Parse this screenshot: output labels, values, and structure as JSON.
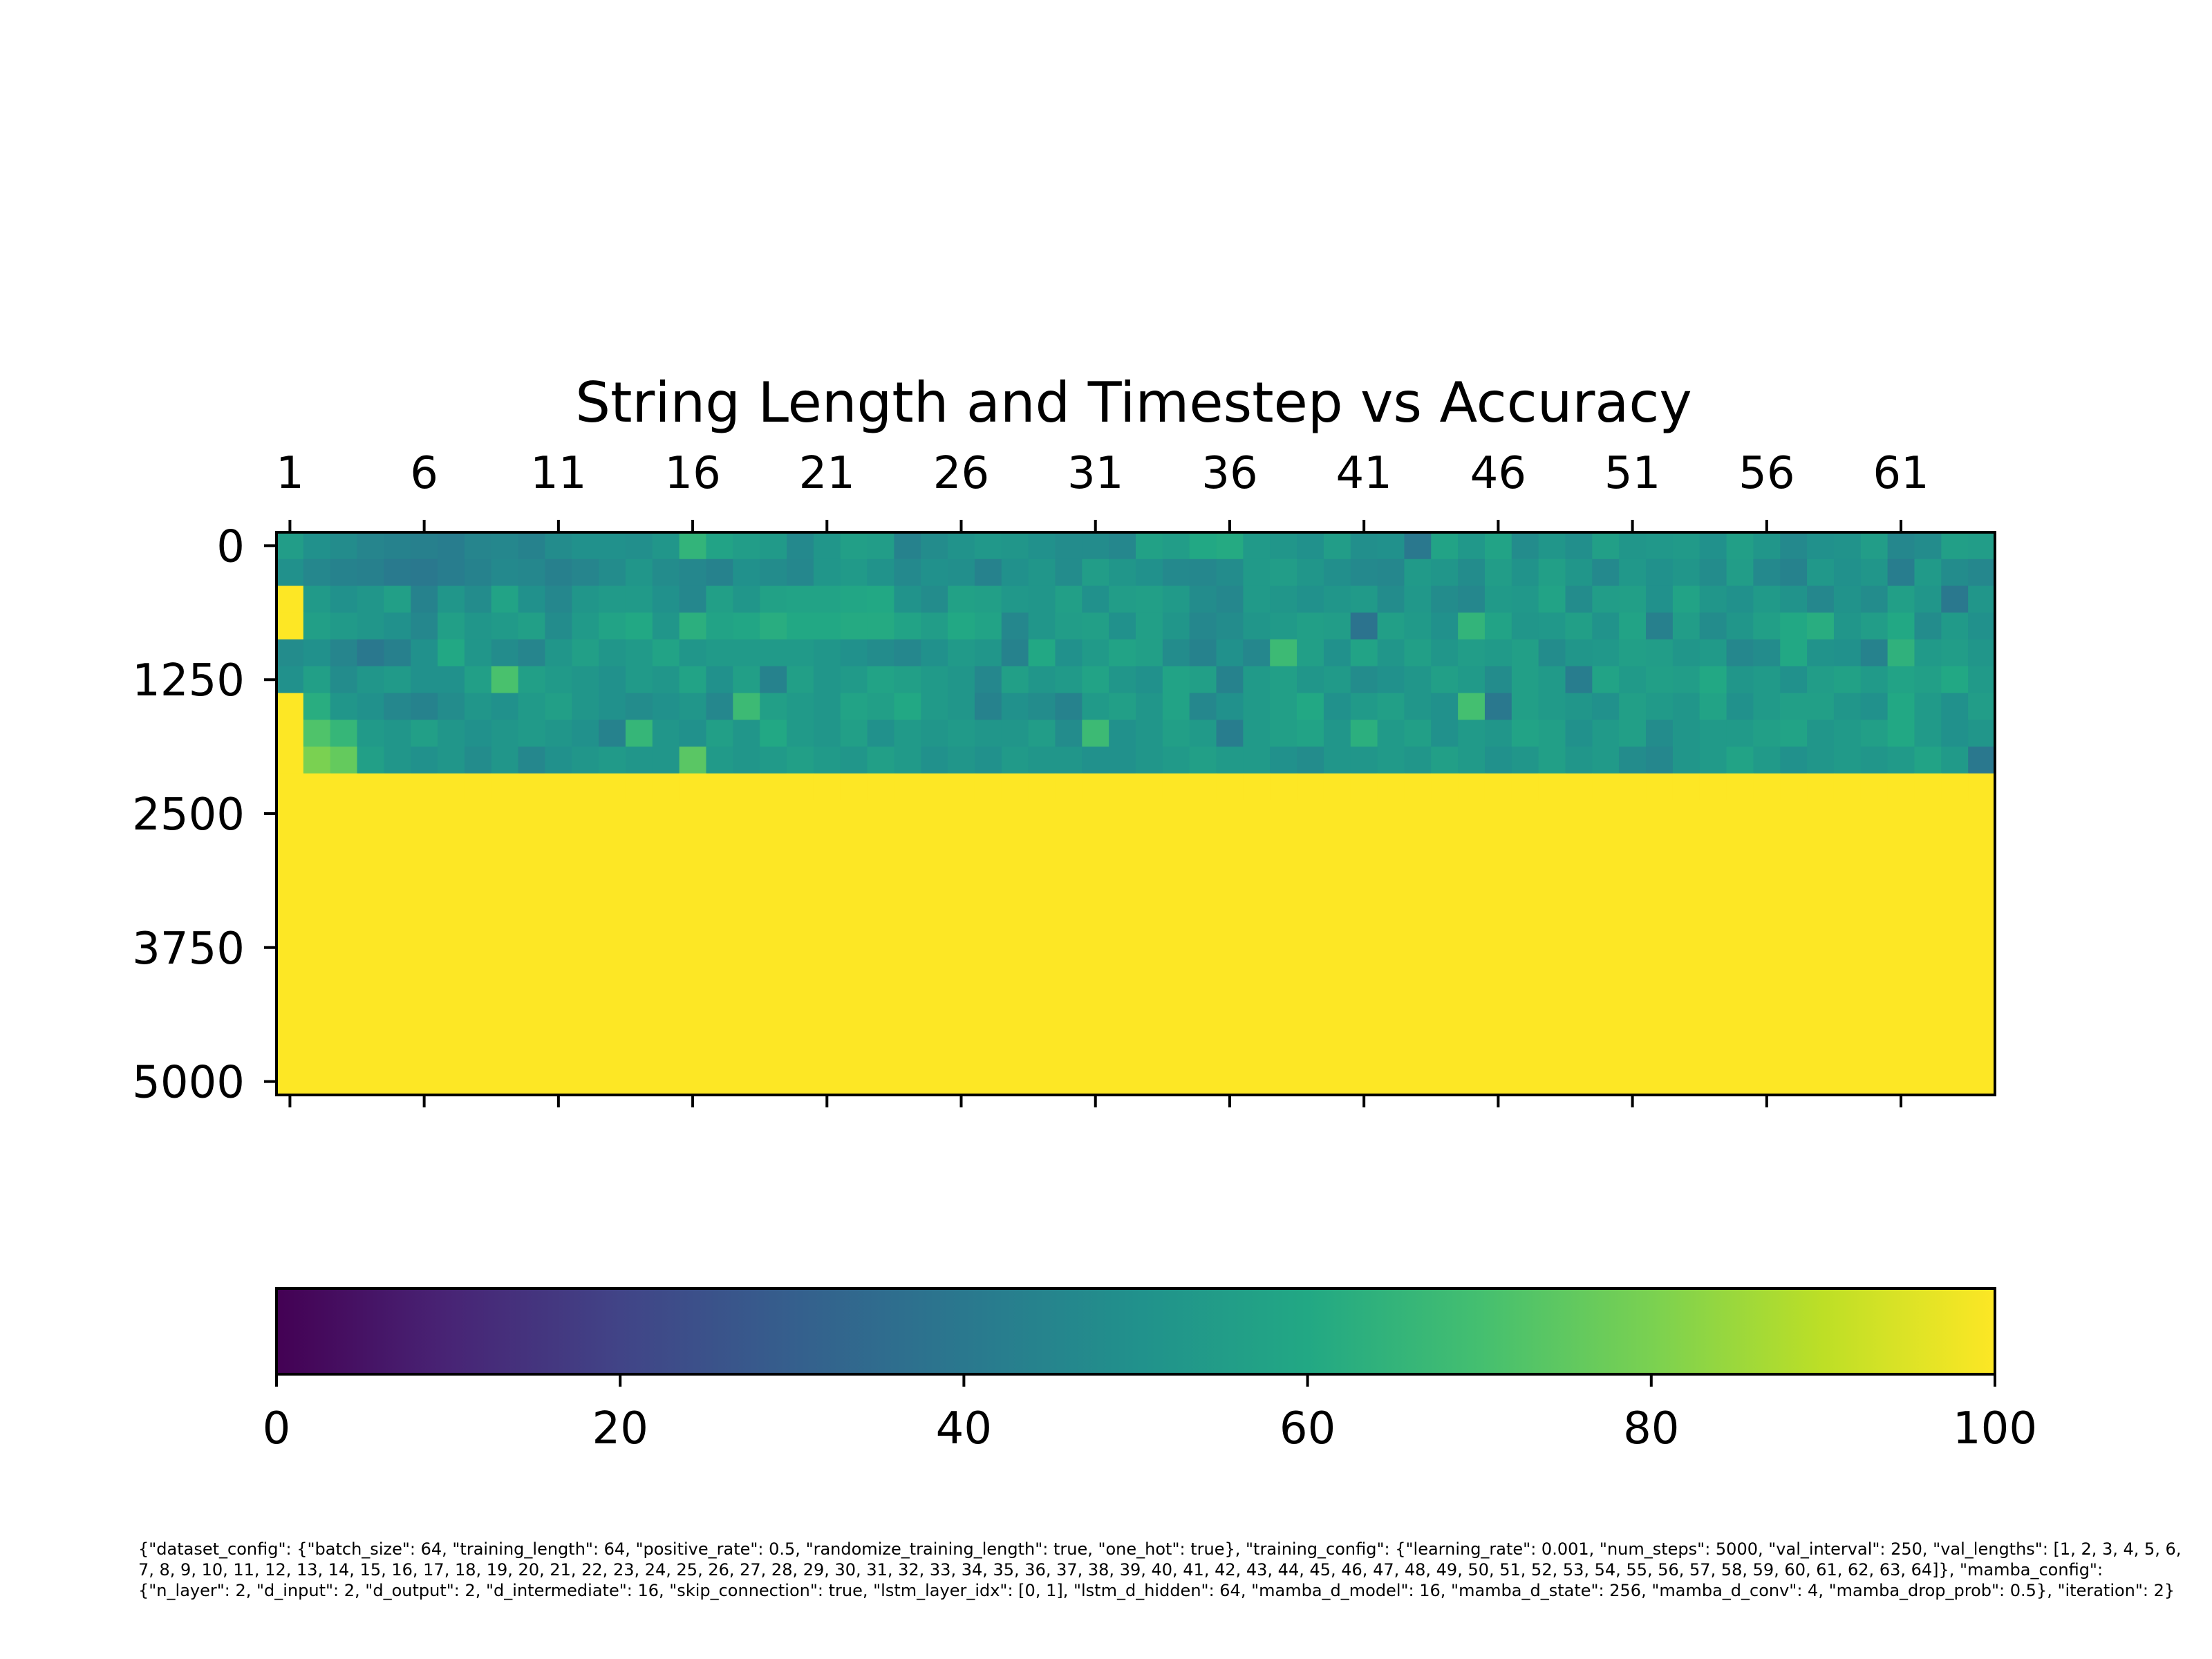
{
  "chart_data": {
    "type": "heatmap",
    "title": "String Length and Timestep vs Accuracy",
    "xlabel": "",
    "ylabel": "",
    "x_range": [
      1,
      64
    ],
    "y_range": [
      0,
      5000
    ],
    "x_tick_labels": [
      "1",
      "6",
      "11",
      "16",
      "21",
      "26",
      "31",
      "36",
      "41",
      "46",
      "51",
      "56",
      "61"
    ],
    "x_tick_values": [
      1,
      6,
      11,
      16,
      21,
      26,
      31,
      36,
      41,
      46,
      51,
      56,
      61
    ],
    "y_tick_labels": [
      "0",
      "1250",
      "2500",
      "3750",
      "5000"
    ],
    "y_tick_values": [
      0,
      1250,
      2500,
      3750,
      5000
    ],
    "row_step": 250,
    "row_timesteps": [
      0,
      250,
      500,
      750,
      1000,
      1250,
      1500,
      1750,
      2000,
      2250,
      2500,
      2750,
      3000,
      3250,
      3500,
      3750,
      4000,
      4250,
      4500,
      4750,
      5000
    ],
    "colormap": "viridis",
    "color_range": [
      0,
      100
    ],
    "colorbar_tick_labels": [
      "0",
      "20",
      "40",
      "60",
      "80",
      "100"
    ],
    "colorbar_tick_values": [
      0,
      20,
      40,
      60,
      80,
      100
    ],
    "rows": [
      {
        "timestep": 0,
        "values": [
          55,
          50,
          48,
          45,
          44,
          43,
          42,
          45,
          46,
          44,
          48,
          50,
          50,
          49,
          52,
          65,
          58,
          55,
          54,
          47,
          52,
          56,
          55,
          44,
          48,
          51,
          53,
          52,
          50,
          48,
          48,
          46,
          57,
          55,
          60,
          61,
          54,
          52,
          50,
          55,
          49,
          50,
          40,
          58,
          53,
          58,
          48,
          52,
          49,
          56,
          52,
          53,
          54,
          50,
          56,
          52,
          47,
          50,
          51,
          55,
          46,
          48,
          56,
          55
        ]
      },
      {
        "timestep": 250,
        "values": [
          50,
          46,
          44,
          43,
          41,
          40,
          42,
          44,
          47,
          46,
          43,
          45,
          48,
          52,
          48,
          46,
          44,
          50,
          48,
          46,
          52,
          54,
          51,
          47,
          50,
          49,
          44,
          50,
          52,
          48,
          55,
          52,
          50,
          47,
          46,
          48,
          54,
          55,
          52,
          49,
          47,
          46,
          54,
          52,
          48,
          55,
          51,
          56,
          52,
          47,
          53,
          50,
          52,
          48,
          55,
          47,
          44,
          53,
          50,
          52,
          42,
          54,
          48,
          46
        ]
      },
      {
        "timestep": 500,
        "values": [
          100,
          54,
          50,
          52,
          56,
          44,
          52,
          48,
          58,
          50,
          46,
          52,
          54,
          54,
          50,
          46,
          56,
          52,
          57,
          58,
          58,
          59,
          60,
          51,
          48,
          57,
          56,
          53,
          52,
          56,
          50,
          55,
          56,
          54,
          48,
          46,
          54,
          52,
          50,
          52,
          54,
          48,
          53,
          48,
          46,
          54,
          53,
          58,
          48,
          55,
          56,
          50,
          58,
          52,
          50,
          54,
          51,
          46,
          51,
          48,
          56,
          52,
          40,
          52
        ]
      },
      {
        "timestep": 750,
        "values": [
          100,
          56,
          54,
          52,
          50,
          46,
          56,
          52,
          54,
          56,
          48,
          54,
          58,
          60,
          52,
          63,
          58,
          59,
          62,
          60,
          60,
          61,
          61,
          58,
          55,
          60,
          58,
          46,
          52,
          55,
          56,
          50,
          56,
          52,
          46,
          48,
          52,
          54,
          56,
          55,
          38,
          56,
          54,
          50,
          65,
          58,
          52,
          53,
          56,
          51,
          58,
          43,
          55,
          48,
          52,
          56,
          60,
          62,
          52,
          55,
          60,
          48,
          54,
          50
        ]
      },
      {
        "timestep": 1000,
        "values": [
          48,
          50,
          45,
          40,
          43,
          50,
          60,
          52,
          48,
          45,
          52,
          56,
          52,
          54,
          58,
          52,
          54,
          54,
          54,
          54,
          52,
          50,
          48,
          46,
          50,
          54,
          52,
          44,
          60,
          50,
          54,
          58,
          56,
          48,
          44,
          50,
          46,
          68,
          56,
          50,
          58,
          52,
          56,
          52,
          55,
          54,
          56,
          48,
          52,
          53,
          56,
          55,
          52,
          54,
          46,
          48,
          60,
          51,
          50,
          44,
          64,
          54,
          55,
          52
        ]
      },
      {
        "timestep": 1250,
        "values": [
          50,
          56,
          48,
          52,
          54,
          50,
          50,
          56,
          71,
          56,
          54,
          52,
          50,
          54,
          52,
          58,
          50,
          56,
          44,
          56,
          52,
          54,
          58,
          56,
          54,
          52,
          46,
          56,
          52,
          54,
          58,
          52,
          50,
          58,
          56,
          44,
          54,
          56,
          52,
          54,
          48,
          50,
          52,
          56,
          54,
          48,
          56,
          54,
          42,
          58,
          54,
          56,
          55,
          60,
          52,
          54,
          50,
          55,
          57,
          54,
          58,
          56,
          60,
          54
        ]
      },
      {
        "timestep": 1500,
        "values": [
          100,
          62,
          52,
          50,
          46,
          44,
          48,
          52,
          50,
          54,
          56,
          52,
          50,
          48,
          50,
          52,
          46,
          68,
          56,
          54,
          52,
          58,
          56,
          60,
          54,
          52,
          44,
          50,
          48,
          44,
          54,
          56,
          52,
          58,
          46,
          50,
          54,
          56,
          60,
          50,
          54,
          56,
          52,
          50,
          70,
          40,
          56,
          54,
          52,
          50,
          56,
          54,
          52,
          58,
          50,
          54,
          56,
          56,
          52,
          50,
          60,
          54,
          50,
          55
        ]
      },
      {
        "timestep": 1750,
        "values": [
          100,
          72,
          66,
          54,
          52,
          56,
          52,
          50,
          52,
          54,
          52,
          50,
          44,
          66,
          52,
          50,
          56,
          52,
          60,
          54,
          52,
          56,
          50,
          54,
          52,
          54,
          52,
          52,
          55,
          48,
          68,
          50,
          52,
          56,
          54,
          42,
          54,
          56,
          58,
          52,
          63,
          54,
          56,
          50,
          54,
          52,
          58,
          56,
          50,
          54,
          56,
          48,
          52,
          54,
          54,
          56,
          58,
          52,
          54,
          56,
          60,
          54,
          50,
          52
        ]
      },
      {
        "timestep": 2000,
        "values": [
          100,
          80,
          76,
          56,
          52,
          50,
          52,
          48,
          52,
          46,
          50,
          52,
          54,
          52,
          52,
          74,
          54,
          52,
          54,
          56,
          54,
          52,
          56,
          54,
          50,
          52,
          50,
          54,
          52,
          52,
          50,
          50,
          52,
          54,
          56,
          54,
          54,
          50,
          48,
          52,
          52,
          54,
          52,
          56,
          54,
          50,
          52,
          56,
          52,
          54,
          48,
          46,
          52,
          54,
          58,
          54,
          50,
          52,
          54,
          52,
          54,
          58,
          54,
          40
        ]
      },
      {
        "timestep": 2250,
        "values": [
          100,
          100,
          100,
          100,
          100,
          100,
          100,
          100,
          100,
          100,
          100,
          100,
          100,
          100,
          100,
          100,
          100,
          100,
          100,
          100,
          100,
          100,
          100,
          100,
          100,
          100,
          100,
          100,
          100,
          100,
          100,
          100,
          100,
          100,
          100,
          100,
          100,
          100,
          100,
          100,
          100,
          100,
          100,
          100,
          100,
          100,
          100,
          100,
          100,
          100,
          100,
          100,
          100,
          100,
          100,
          100,
          100,
          100,
          100,
          100,
          100,
          100,
          100,
          100
        ]
      }
    ],
    "fill_after_last_row": 100
  },
  "caption": "{\"dataset_config\": {\"batch_size\": 64, \"training_length\": 64, \"positive_rate\": 0.5, \"randomize_training_length\": true, \"one_hot\": true}, \"training_config\": {\"learning_rate\": 0.001, \"num_steps\": 5000, \"val_interval\": 250, \"val_lengths\": [1, 2, 3, 4, 5, 6, 7, 8, 9, 10, 11, 12, 13, 14, 15, 16, 17, 18, 19, 20, 21, 22, 23, 24, 25, 26, 27, 28, 29, 30, 31, 32, 33, 34, 35, 36, 37, 38, 39, 40, 41, 42, 43, 44, 45, 46, 47, 48, 49, 50, 51, 52, 53, 54, 55, 56, 57, 58, 59, 60, 61, 62, 63, 64]}, \"mamba_config\": {\"n_layer\": 2, \"d_input\": 2, \"d_output\": 2, \"d_intermediate\": 16, \"skip_connection\": true, \"lstm_layer_idx\": [0, 1], \"lstm_d_hidden\": 64, \"mamba_d_model\": 16, \"mamba_d_state\": 256, \"mamba_d_conv\": 4, \"mamba_drop_prob\": 0.5}, \"iteration\": 2}"
}
